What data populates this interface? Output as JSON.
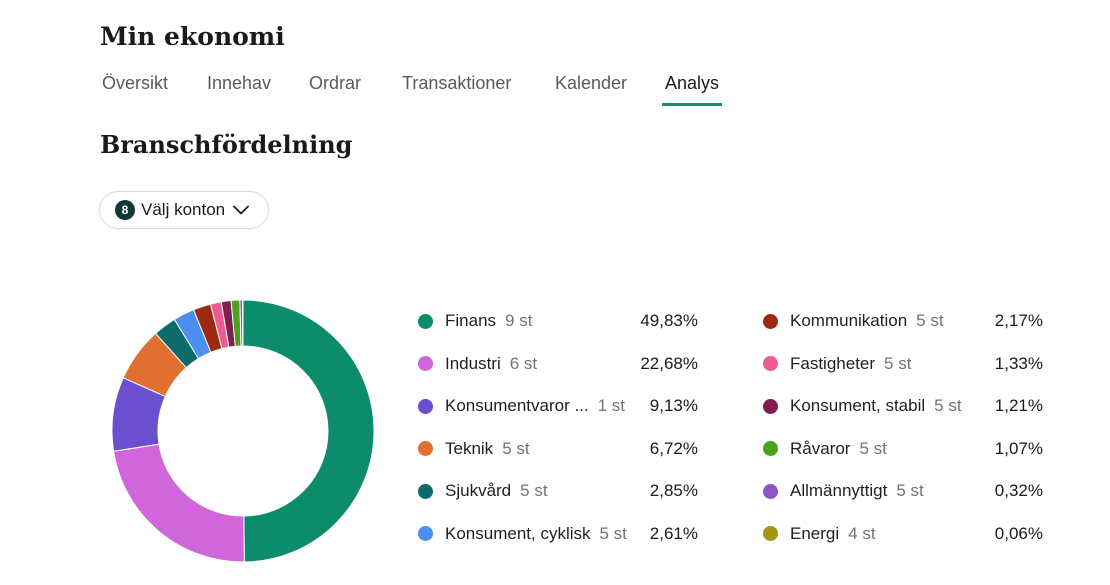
{
  "header": {
    "title": "Min ekonomi"
  },
  "tabs": [
    {
      "label": "Översikt"
    },
    {
      "label": "Innehav"
    },
    {
      "label": "Ordrar"
    },
    {
      "label": "Transaktioner"
    },
    {
      "label": "Kalender"
    },
    {
      "label": "Analys",
      "active": true
    }
  ],
  "section": {
    "title": "Branschfördelning"
  },
  "account_picker": {
    "count": "8",
    "label": "Välj konton"
  },
  "chart_data": {
    "type": "pie",
    "series": [
      {
        "name": "Finans",
        "count": "9 st",
        "percent": "49,83%",
        "value": 49.83,
        "color": "#0d8c6c"
      },
      {
        "name": "Industri",
        "count": "6 st",
        "percent": "22,68%",
        "value": 22.68,
        "color": "#cf66d9"
      },
      {
        "name": "Konsumentvaror ...",
        "count": "1 st",
        "percent": "9,13%",
        "value": 9.13,
        "color": "#6a4fd0"
      },
      {
        "name": "Teknik",
        "count": "5 st",
        "percent": "6,72%",
        "value": 6.72,
        "color": "#e07032"
      },
      {
        "name": "Sjukvård",
        "count": "5 st",
        "percent": "2,85%",
        "value": 2.85,
        "color": "#0e6b6b"
      },
      {
        "name": "Konsument, cyklisk",
        "count": "5 st",
        "percent": "2,61%",
        "value": 2.61,
        "color": "#4d8ff0"
      },
      {
        "name": "Kommunikation",
        "count": "5 st",
        "percent": "2,17%",
        "value": 2.17,
        "color": "#9c2a12"
      },
      {
        "name": "Fastigheter",
        "count": "5 st",
        "percent": "1,33%",
        "value": 1.33,
        "color": "#ea5d93"
      },
      {
        "name": "Konsument, stabil",
        "count": "5 st",
        "percent": "1,21%",
        "value": 1.21,
        "color": "#7e1f4f"
      },
      {
        "name": "Råvaror",
        "count": "5 st",
        "percent": "1,07%",
        "value": 1.07,
        "color": "#4ca21e"
      },
      {
        "name": "Allmännyttigt",
        "count": "5 st",
        "percent": "0,32%",
        "value": 0.32,
        "color": "#8c55c4"
      },
      {
        "name": "Energi",
        "count": "4 st",
        "percent": "0,06%",
        "value": 0.06,
        "color": "#a3950f"
      }
    ]
  }
}
